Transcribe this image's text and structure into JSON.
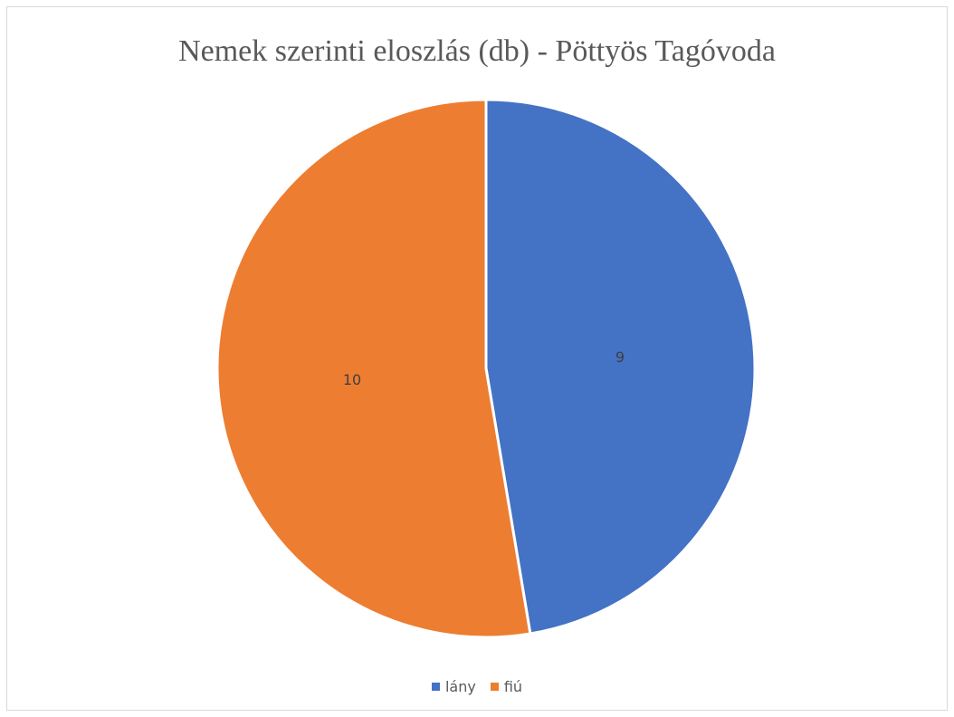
{
  "chart_data": {
    "type": "pie",
    "title": "Nemek szerinti eloszlás (db) - Pöttyös Tagóvoda",
    "categories": [
      "lány",
      "fiú"
    ],
    "values": [
      9,
      10
    ],
    "colors": [
      "#4472C4",
      "#ED7D31"
    ],
    "data_labels": [
      "9",
      "10"
    ],
    "legend_position": "bottom",
    "start_angle_deg": 0,
    "direction": "clockwise"
  }
}
